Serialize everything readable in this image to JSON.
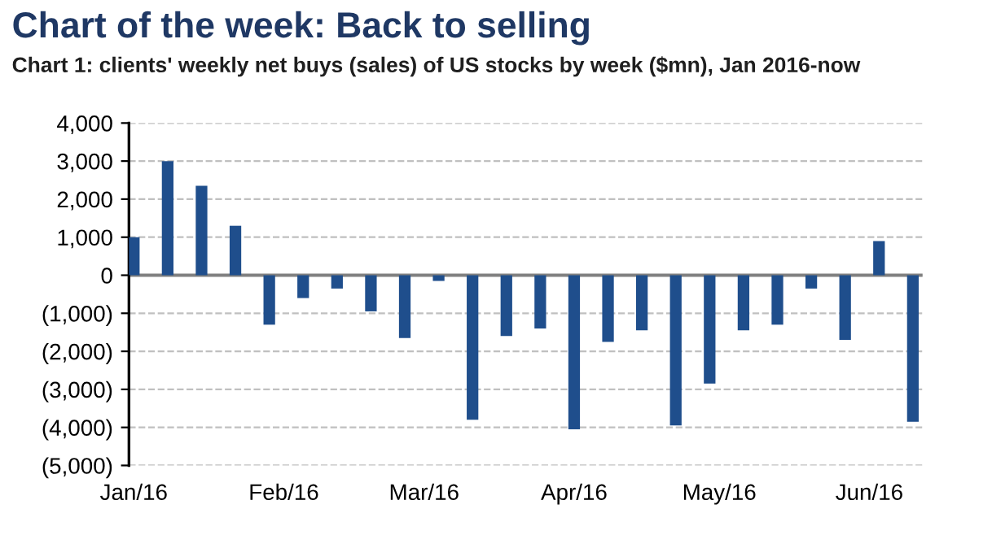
{
  "chart_data": {
    "type": "bar",
    "title": "Chart of the week: Back to selling",
    "subtitle": "Chart 1: clients' weekly net buys (sales) of US stocks by week ($mn), Jan 2016-now",
    "x": [
      "2016-01-01",
      "2016-01-08",
      "2016-01-15",
      "2016-01-22",
      "2016-01-29",
      "2016-02-05",
      "2016-02-12",
      "2016-02-19",
      "2016-02-26",
      "2016-03-04",
      "2016-03-11",
      "2016-03-18",
      "2016-03-25",
      "2016-04-01",
      "2016-04-08",
      "2016-04-15",
      "2016-04-22",
      "2016-04-29",
      "2016-05-06",
      "2016-05-13",
      "2016-05-20",
      "2016-05-27",
      "2016-06-03",
      "2016-06-10"
    ],
    "values": [
      1000,
      3000,
      2350,
      1300,
      -1300,
      -600,
      -350,
      -950,
      -1650,
      -150,
      -3800,
      -1600,
      -1400,
      -4050,
      -1750,
      -1450,
      -3950,
      -2850,
      -1450,
      -1300,
      -350,
      -1700,
      900,
      -3850
    ],
    "color": "#1f4e8c",
    "xlim": [
      "2015-12-31",
      "2016-06-12"
    ],
    "xticks": [
      {
        "value": "2016-01-01",
        "label": "Jan/16"
      },
      {
        "value": "2016-02-01",
        "label": "Feb/16"
      },
      {
        "value": "2016-03-01",
        "label": "Mar/16"
      },
      {
        "value": "2016-04-01",
        "label": "Apr/16"
      },
      {
        "value": "2016-05-01",
        "label": "May/16"
      },
      {
        "value": "2016-06-01",
        "label": "Jun/16"
      }
    ],
    "ylim": [
      -5000,
      4000
    ],
    "yticks": [
      {
        "value": 4000,
        "label": "4,000"
      },
      {
        "value": 3000,
        "label": "3,000"
      },
      {
        "value": 2000,
        "label": "2,000"
      },
      {
        "value": 1000,
        "label": "1,000"
      },
      {
        "value": 0,
        "label": "0"
      },
      {
        "value": -1000,
        "label": "(1,000)"
      },
      {
        "value": -2000,
        "label": "(2,000)"
      },
      {
        "value": -3000,
        "label": "(3,000)"
      },
      {
        "value": -4000,
        "label": "(4,000)"
      },
      {
        "value": -5000,
        "label": "(5,000)"
      }
    ],
    "ref_lines": [
      {
        "axis": "y",
        "value": 0,
        "color": "#808080"
      }
    ],
    "grid": "y"
  }
}
